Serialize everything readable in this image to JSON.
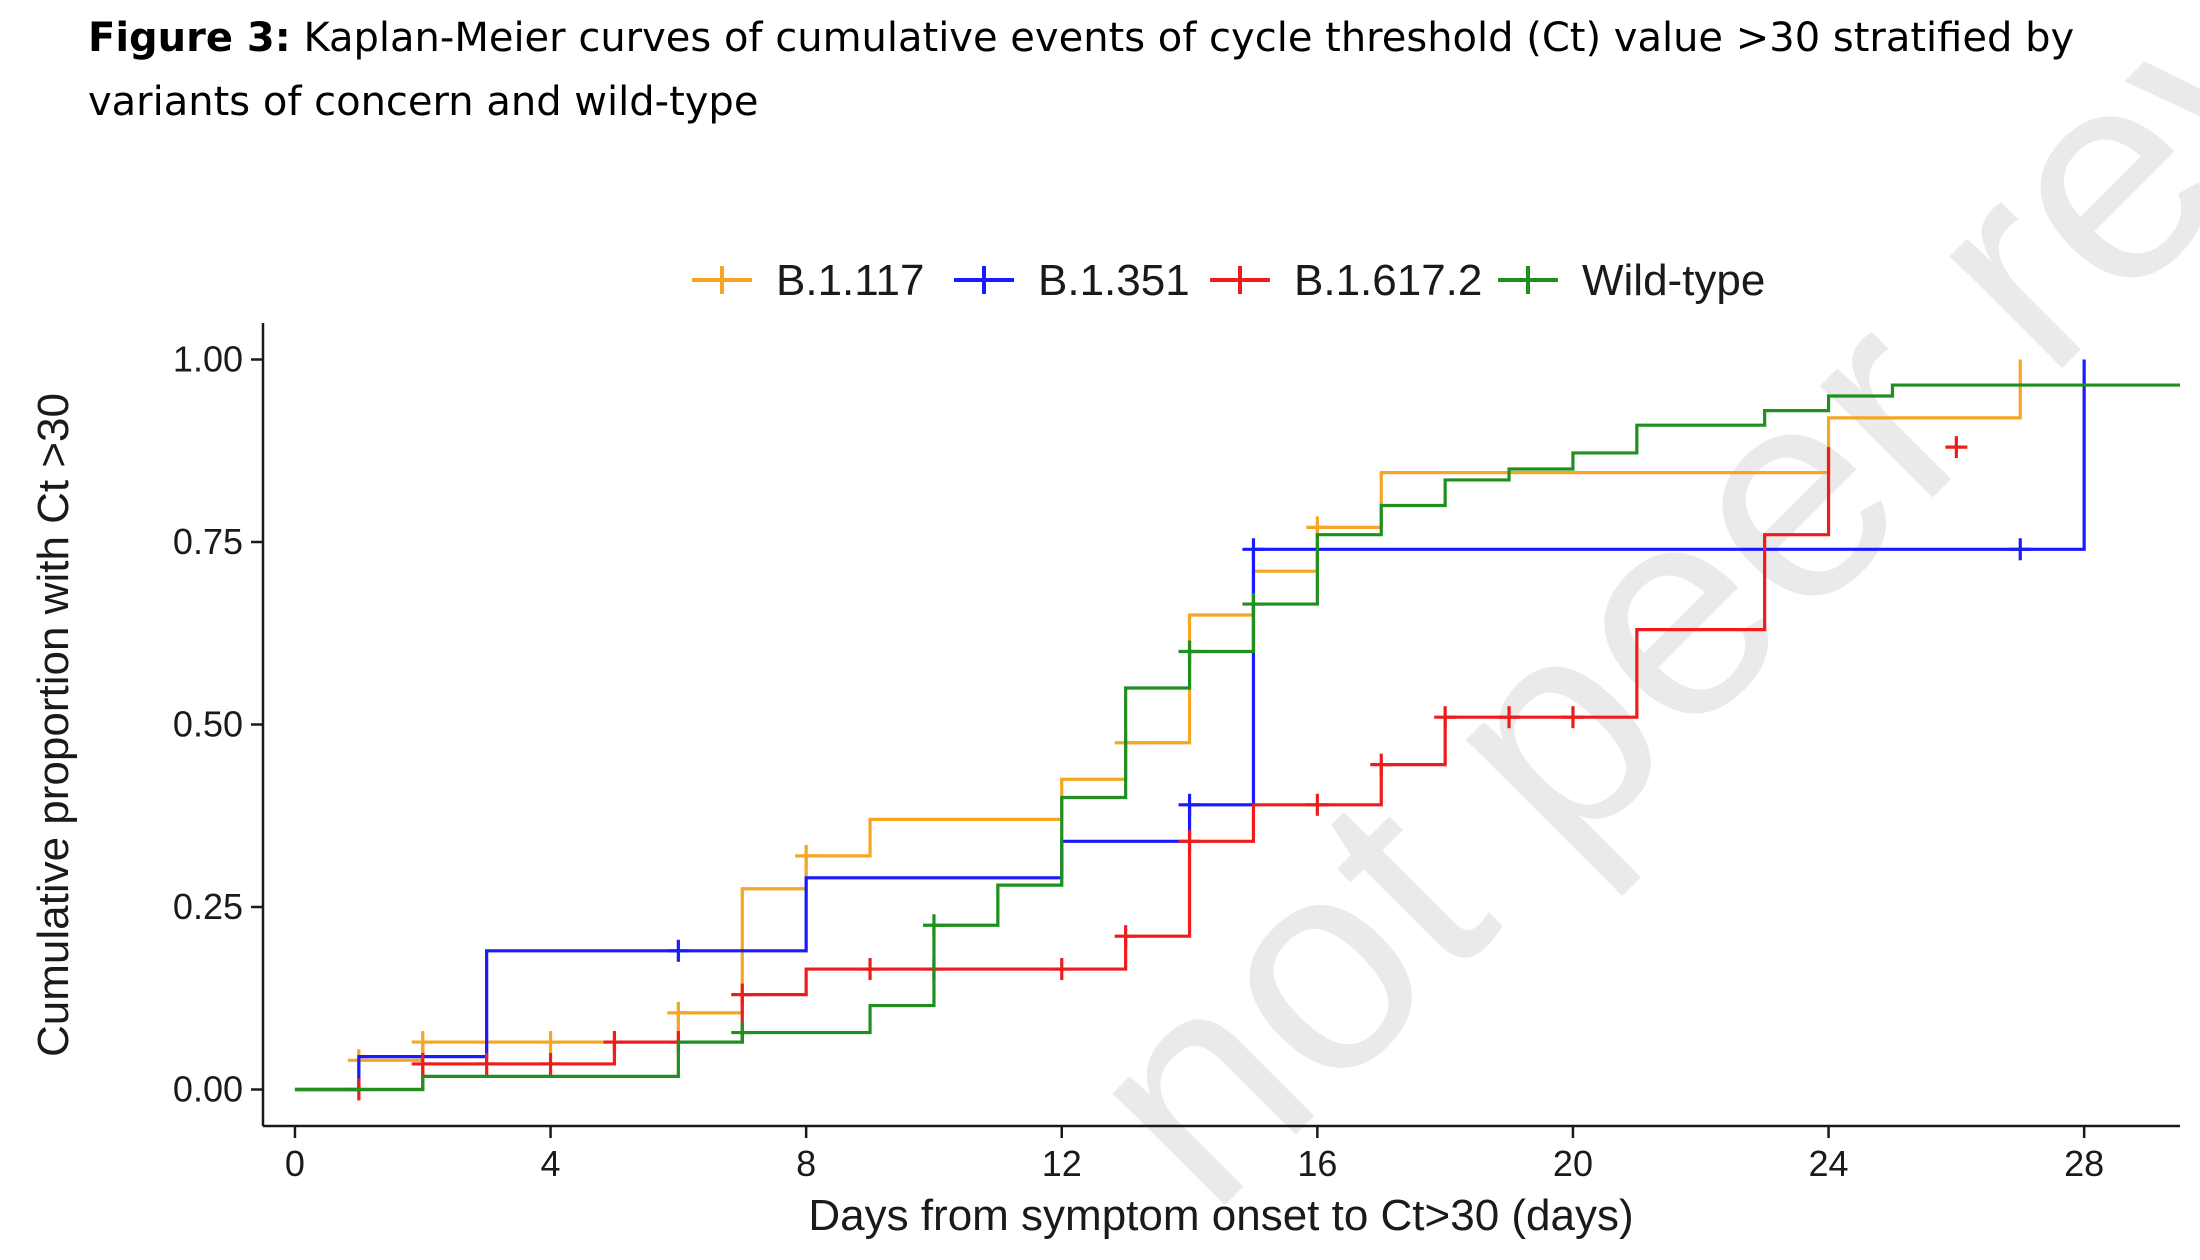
{
  "caption": {
    "label": "Figure 3:",
    "text": " Kaplan-Meier curves of cumulative events of cycle threshold (Ct) value >30 stratified by variants of concern and wild-type"
  },
  "watermark": "not peer reviewed",
  "chart_data": {
    "type": "line",
    "step": true,
    "xlabel": "Days from symptom onset to Ct>30 (days)",
    "ylabel": "Cumulative proportion with Ct >30",
    "xlim": [
      -0.5,
      29.5
    ],
    "ylim": [
      -0.05,
      1.05
    ],
    "xticks": [
      0,
      4,
      8,
      12,
      16,
      20,
      24,
      28
    ],
    "yticks": [
      0.0,
      0.25,
      0.5,
      0.75,
      1.0
    ],
    "ytick_labels": [
      "0.00",
      "0.25",
      "0.50",
      "0.75",
      "1.00"
    ],
    "grid": false,
    "legend_position": "top",
    "series": [
      {
        "name": "B.1.117",
        "color": "#f5a623",
        "steps": [
          [
            1,
            0.04
          ],
          [
            2,
            0.065
          ],
          [
            6,
            0.105
          ],
          [
            7,
            0.275
          ],
          [
            8,
            0.32
          ],
          [
            9,
            0.37
          ],
          [
            12,
            0.425
          ],
          [
            13,
            0.475
          ],
          [
            14,
            0.65
          ],
          [
            15,
            0.71
          ],
          [
            16,
            0.77
          ],
          [
            17,
            0.845
          ],
          [
            24,
            0.92
          ],
          [
            27,
            1.0
          ]
        ],
        "censored": [
          [
            1,
            0.04
          ],
          [
            2,
            0.065
          ],
          [
            3,
            0.065
          ],
          [
            4,
            0.065
          ],
          [
            5,
            0.065
          ],
          [
            6,
            0.105
          ],
          [
            8,
            0.32
          ],
          [
            13,
            0.475
          ],
          [
            16,
            0.77
          ]
        ]
      },
      {
        "name": "B.1.351",
        "color": "#1a1aff",
        "steps": [
          [
            1,
            0.045
          ],
          [
            3,
            0.19
          ],
          [
            8,
            0.29
          ],
          [
            12,
            0.34
          ],
          [
            14,
            0.39
          ],
          [
            15,
            0.74
          ],
          [
            28,
            1.0
          ]
        ],
        "censored": [
          [
            6,
            0.19
          ],
          [
            14,
            0.39
          ],
          [
            15,
            0.74
          ],
          [
            27,
            0.74
          ]
        ]
      },
      {
        "name": "B.1.617.2",
        "color": "#ee1c1c",
        "steps": [
          [
            1,
            0.0
          ],
          [
            2,
            0.035
          ],
          [
            5,
            0.065
          ],
          [
            7,
            0.13
          ],
          [
            8,
            0.165
          ],
          [
            13,
            0.21
          ],
          [
            14,
            0.34
          ],
          [
            15,
            0.39
          ],
          [
            17,
            0.445
          ],
          [
            18,
            0.51
          ],
          [
            21,
            0.63
          ],
          [
            23,
            0.76
          ],
          [
            24,
            0.88
          ]
        ],
        "censored": [
          [
            1,
            0.0
          ],
          [
            2,
            0.035
          ],
          [
            3,
            0.035
          ],
          [
            4,
            0.035
          ],
          [
            5,
            0.065
          ],
          [
            6,
            0.065
          ],
          [
            7,
            0.13
          ],
          [
            9,
            0.165
          ],
          [
            10,
            0.165
          ],
          [
            12,
            0.165
          ],
          [
            13,
            0.21
          ],
          [
            14,
            0.34
          ],
          [
            16,
            0.39
          ],
          [
            17,
            0.445
          ],
          [
            18,
            0.51
          ],
          [
            19,
            0.51
          ],
          [
            20,
            0.51
          ],
          [
            26,
            0.88
          ]
        ]
      },
      {
        "name": "Wild-type",
        "color": "#1f8f1f",
        "steps": [
          [
            0,
            0.0
          ],
          [
            2,
            0.018
          ],
          [
            6,
            0.065
          ],
          [
            7,
            0.078
          ],
          [
            9,
            0.115
          ],
          [
            10,
            0.225
          ],
          [
            11,
            0.28
          ],
          [
            12,
            0.4
          ],
          [
            13,
            0.55
          ],
          [
            14,
            0.6
          ],
          [
            15,
            0.665
          ],
          [
            16,
            0.76
          ],
          [
            17,
            0.8
          ],
          [
            18,
            0.835
          ],
          [
            19,
            0.85
          ],
          [
            20,
            0.872
          ],
          [
            21,
            0.91
          ],
          [
            23,
            0.93
          ],
          [
            24,
            0.95
          ],
          [
            25,
            0.965
          ]
        ],
        "end_x": 29.5,
        "censored": [
          [
            7,
            0.078
          ],
          [
            10,
            0.225
          ],
          [
            14,
            0.6
          ],
          [
            15,
            0.665
          ]
        ]
      }
    ]
  }
}
